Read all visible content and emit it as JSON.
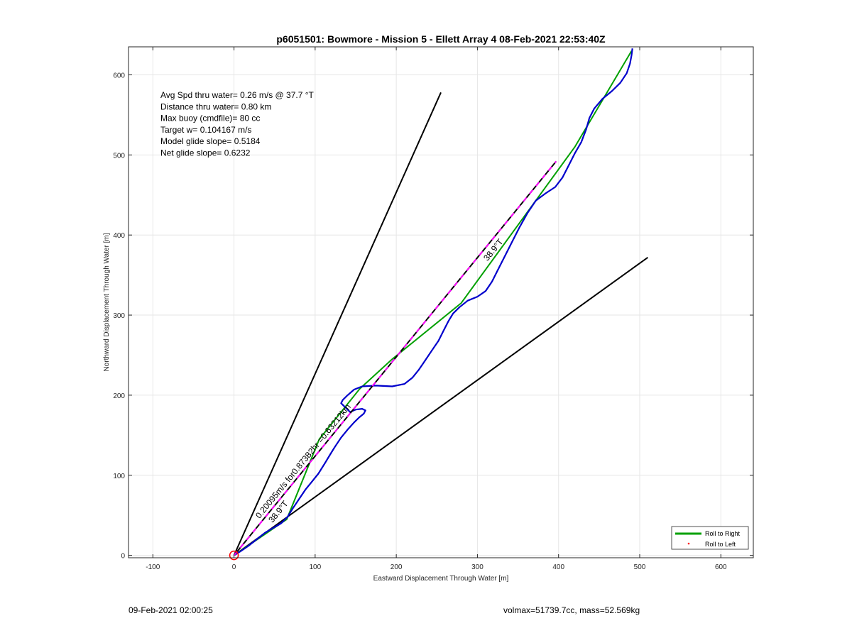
{
  "footer": {
    "timestamp": "09-Feb-2021 02:00:25",
    "volmax_mass": "volmax=51739.7cc, mass=52.569kg"
  },
  "chart_data": {
    "type": "line",
    "title": "p6051501: Bowmore - Mission 5 - Ellett Array 4 08-Feb-2021 22:53:40Z",
    "xlabel": "Eastward Displacement Through Water [m]",
    "ylabel": "Northward Displacement Through Water [m]",
    "xlim": [
      -130,
      640
    ],
    "ylim": [
      -3,
      635
    ],
    "xticks": [
      -100,
      0,
      100,
      200,
      300,
      400,
      500,
      600
    ],
    "yticks": [
      0,
      100,
      200,
      300,
      400,
      500,
      600
    ],
    "grid": true,
    "legend_position": "bottom-right",
    "stats_lines": [
      "Avg Spd thru water=  0.26 m/s @  37.7 °T",
      "Distance thru water=  0.80 km",
      "Max buoy (cmdfile)= 80 cc",
      "Target w= 0.104167 m/s",
      "Model glide slope= 0.5184",
      "Net glide slope= 0.6232"
    ],
    "annotations": {
      "speed_label": "0.20095m/s for0.87382hr =0.63212km",
      "heading_label_lower": "38.9°T",
      "heading_label_upper": "38.9°T"
    },
    "legend": [
      {
        "name": "Roll to Right",
        "color": "#00a000",
        "style": "line"
      },
      {
        "name": "Roll to Left",
        "color": "#ff0000",
        "style": "dot"
      }
    ],
    "colors": {
      "track": "#0000cc",
      "roll_right": "#00a000",
      "cone": "#000000",
      "bearing_dash": "#ff00ff",
      "start_marker": "#ff0000"
    },
    "series": [
      {
        "kind": "cone_upper",
        "points": [
          [
            0,
            0
          ],
          [
            255,
            578
          ]
        ]
      },
      {
        "kind": "cone_lower",
        "points": [
          [
            0,
            0
          ],
          [
            510,
            372
          ]
        ]
      },
      {
        "kind": "bearing",
        "points": [
          [
            0,
            0
          ],
          [
            397,
            492
          ]
        ]
      },
      {
        "kind": "roll_right",
        "points": [
          [
            0,
            0
          ],
          [
            65,
            45
          ],
          [
            105,
            145
          ],
          [
            155,
            208
          ],
          [
            195,
            245
          ],
          [
            280,
            315
          ],
          [
            420,
            510
          ],
          [
            490,
            630
          ]
        ]
      },
      {
        "kind": "track",
        "points": [
          [
            0,
            0
          ],
          [
            8,
            5
          ],
          [
            18,
            12
          ],
          [
            28,
            20
          ],
          [
            38,
            28
          ],
          [
            48,
            34
          ],
          [
            58,
            40
          ],
          [
            66,
            48
          ],
          [
            72,
            58
          ],
          [
            80,
            70
          ],
          [
            88,
            82
          ],
          [
            96,
            92
          ],
          [
            104,
            102
          ],
          [
            112,
            115
          ],
          [
            118,
            125
          ],
          [
            124,
            135
          ],
          [
            132,
            147
          ],
          [
            140,
            157
          ],
          [
            148,
            166
          ],
          [
            154,
            172
          ],
          [
            160,
            177
          ],
          [
            162,
            181
          ],
          [
            158,
            183
          ],
          [
            150,
            182
          ],
          [
            143,
            179
          ],
          [
            140,
            182
          ],
          [
            136,
            186
          ],
          [
            132,
            190
          ],
          [
            134,
            194
          ],
          [
            140,
            200
          ],
          [
            148,
            207
          ],
          [
            158,
            211
          ],
          [
            175,
            212
          ],
          [
            195,
            211
          ],
          [
            210,
            214
          ],
          [
            220,
            222
          ],
          [
            228,
            232
          ],
          [
            236,
            244
          ],
          [
            244,
            256
          ],
          [
            252,
            268
          ],
          [
            258,
            280
          ],
          [
            264,
            292
          ],
          [
            270,
            302
          ],
          [
            278,
            310
          ],
          [
            288,
            318
          ],
          [
            300,
            323
          ],
          [
            310,
            330
          ],
          [
            318,
            342
          ],
          [
            326,
            358
          ],
          [
            334,
            374
          ],
          [
            342,
            390
          ],
          [
            352,
            410
          ],
          [
            362,
            428
          ],
          [
            372,
            443
          ],
          [
            384,
            452
          ],
          [
            396,
            460
          ],
          [
            405,
            472
          ],
          [
            412,
            486
          ],
          [
            420,
            502
          ],
          [
            428,
            516
          ],
          [
            434,
            532
          ],
          [
            438,
            546
          ],
          [
            444,
            558
          ],
          [
            454,
            570
          ],
          [
            466,
            580
          ],
          [
            476,
            590
          ],
          [
            484,
            602
          ],
          [
            488,
            614
          ],
          [
            490,
            625
          ],
          [
            491,
            633
          ]
        ]
      }
    ]
  }
}
